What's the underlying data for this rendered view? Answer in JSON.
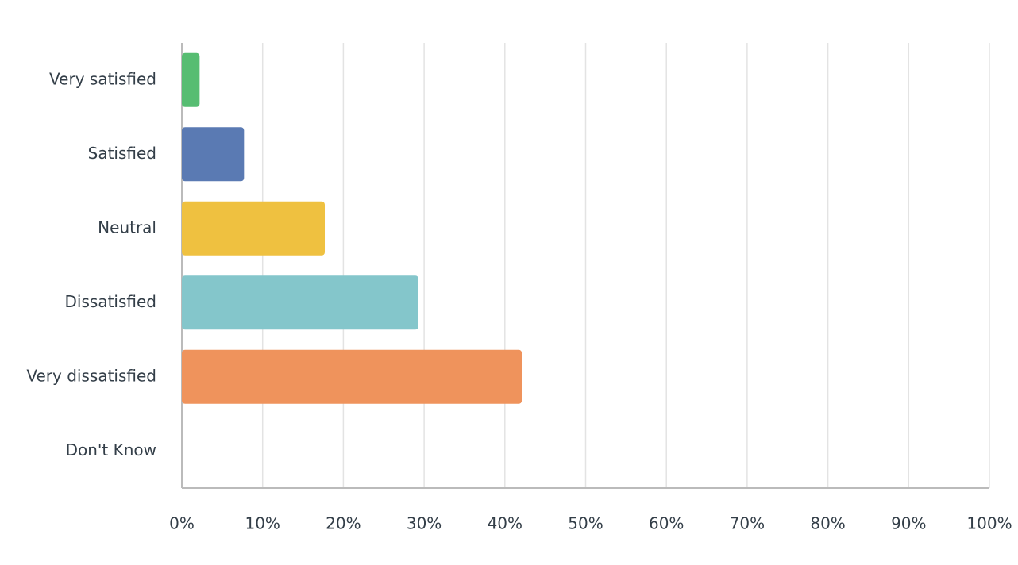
{
  "chart_data": {
    "type": "bar",
    "orientation": "horizontal",
    "categories": [
      "Very satisfied",
      "Satisfied",
      "Neutral",
      "Dissatisfied",
      "Very dissatisfied",
      "Don't Know"
    ],
    "values": [
      2.2,
      7.7,
      17.7,
      29.3,
      42.1,
      0
    ],
    "colors": [
      "#57bd72",
      "#5a7ab3",
      "#efc140",
      "#84c6cb",
      "#ef935c",
      "#999999"
    ],
    "xlim": [
      0,
      100
    ],
    "xticks": [
      {
        "value": 0,
        "label": "0%"
      },
      {
        "value": 10,
        "label": "10%"
      },
      {
        "value": 20,
        "label": "20%"
      },
      {
        "value": 30,
        "label": "30%"
      },
      {
        "value": 40,
        "label": "40%"
      },
      {
        "value": 50,
        "label": "50%"
      },
      {
        "value": 60,
        "label": "60%"
      },
      {
        "value": 70,
        "label": "70%"
      },
      {
        "value": 80,
        "label": "80%"
      },
      {
        "value": 90,
        "label": "90%"
      },
      {
        "value": 100,
        "label": "100%"
      }
    ],
    "grid": true
  }
}
